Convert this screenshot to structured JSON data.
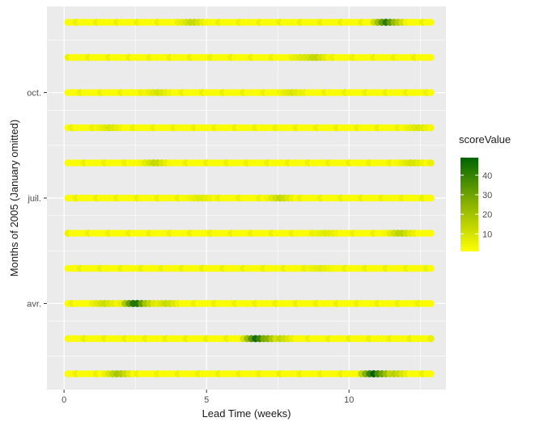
{
  "chart_data": {
    "type": "scatter",
    "title": "",
    "xlabel": "Lead Time (weeks)",
    "ylabel": "Months of 2005 (January omitted)",
    "xlim": [
      -0.6,
      13.4
    ],
    "ylim": [
      0.55,
      11.45
    ],
    "x_ticks": [
      0,
      5,
      10
    ],
    "x_tick_labels": [
      "0",
      "5",
      "10"
    ],
    "y_ticks": [
      3,
      6,
      9
    ],
    "y_tick_labels": [
      "avr.",
      "juil.",
      "oct."
    ],
    "grid": true,
    "panel_background": "#ebebeb",
    "gridline_color": "#ffffff",
    "legend": {
      "title": "scoreValue",
      "placement": "right",
      "breaks": [
        10,
        20,
        30,
        40
      ],
      "break_labels": [
        "10",
        "20",
        "30",
        "40"
      ],
      "range": [
        1,
        49
      ],
      "low_color": "#ffff00",
      "high_color": "#006400"
    },
    "series": [
      {
        "row": 1,
        "x_start": 0.14,
        "x_step": 0.143,
        "n": 91,
        "base_value": 2,
        "hotspots": [
          {
            "x": 1.9,
            "value": 18
          },
          {
            "x": 10.85,
            "value": 48
          },
          {
            "x": 11.1,
            "value": 30
          },
          {
            "x": 11.6,
            "value": 14
          }
        ]
      },
      {
        "row": 2,
        "x_start": 0.14,
        "x_step": 0.143,
        "n": 91,
        "base_value": 2,
        "hotspots": [
          {
            "x": 6.75,
            "value": 46
          },
          {
            "x": 7.05,
            "value": 28
          },
          {
            "x": 7.6,
            "value": 12
          }
        ]
      },
      {
        "row": 3,
        "x_start": 0.14,
        "x_step": 0.143,
        "n": 91,
        "base_value": 2,
        "hotspots": [
          {
            "x": 1.4,
            "value": 10
          },
          {
            "x": 2.5,
            "value": 47
          },
          {
            "x": 2.75,
            "value": 22
          },
          {
            "x": 3.6,
            "value": 11
          }
        ]
      },
      {
        "row": 4,
        "x_start": 0.14,
        "x_step": 0.143,
        "n": 91,
        "base_value": 2,
        "hotspots": [
          {
            "x": 9.0,
            "value": 5
          }
        ]
      },
      {
        "row": 5,
        "x_start": 0.14,
        "x_step": 0.143,
        "n": 91,
        "base_value": 2,
        "hotspots": [
          {
            "x": 11.8,
            "value": 14
          },
          {
            "x": 9.2,
            "value": 6
          }
        ]
      },
      {
        "row": 6,
        "x_start": 0.14,
        "x_step": 0.143,
        "n": 91,
        "base_value": 2,
        "hotspots": [
          {
            "x": 7.6,
            "value": 12
          },
          {
            "x": 4.8,
            "value": 6
          }
        ]
      },
      {
        "row": 7,
        "x_start": 0.14,
        "x_step": 0.143,
        "n": 91,
        "base_value": 2,
        "hotspots": [
          {
            "x": 3.2,
            "value": 12
          },
          {
            "x": 12.2,
            "value": 8
          }
        ]
      },
      {
        "row": 8,
        "x_start": 0.14,
        "x_step": 0.143,
        "n": 91,
        "base_value": 2,
        "hotspots": [
          {
            "x": 1.6,
            "value": 7
          },
          {
            "x": 12.4,
            "value": 7
          }
        ]
      },
      {
        "row": 9,
        "x_start": 0.14,
        "x_step": 0.143,
        "n": 91,
        "base_value": 2,
        "hotspots": [
          {
            "x": 3.3,
            "value": 8
          },
          {
            "x": 8.0,
            "value": 7
          }
        ]
      },
      {
        "row": 10,
        "x_start": 0.14,
        "x_step": 0.143,
        "n": 91,
        "base_value": 2,
        "hotspots": [
          {
            "x": 8.8,
            "value": 13
          },
          {
            "x": 8.4,
            "value": 7
          }
        ]
      },
      {
        "row": 11,
        "x_start": 0.14,
        "x_step": 0.143,
        "n": 91,
        "base_value": 2,
        "hotspots": [
          {
            "x": 4.5,
            "value": 12
          },
          {
            "x": 11.3,
            "value": 40
          },
          {
            "x": 11.5,
            "value": 24
          }
        ]
      }
    ]
  }
}
